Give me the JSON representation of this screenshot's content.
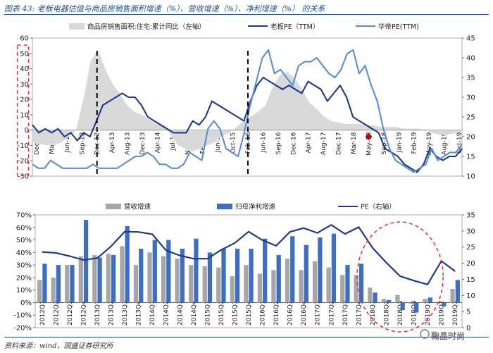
{
  "header": {
    "title": "图表 43: 老板电器估值与商品房销售面积增速（%）、营收增速（%）、净利增速（%） 的关系"
  },
  "footer": {
    "source": "资料来源：wind，国盛证券研究所",
    "watermark": "鞠晶时尚"
  },
  "colors": {
    "area": "#d9d9d9",
    "boss_pe": "#1f3a8a",
    "huadi_pe": "#5b8dd6",
    "revenue_bar": "#a6a6a6",
    "profit_bar": "#3c6fc4",
    "pe_line": "#1f3a8a",
    "highlight_marker": "#c00000",
    "box": "#e03030"
  },
  "chart_data": [
    {
      "type": "line",
      "title": "",
      "legend": [
        "商品房销售面积:住宅:累计同比（左轴）",
        "老板PE（TTM）",
        "华帝PE(TTM)"
      ],
      "legend_position": "top",
      "left_axis": {
        "ylim": [
          -30,
          60
        ],
        "ticks": [
          -30,
          -20,
          -10,
          0,
          10,
          20,
          30,
          40,
          50,
          60
        ]
      },
      "right_axis": {
        "ylim": [
          10,
          45
        ],
        "ticks": [
          10,
          15,
          20,
          25,
          30,
          35,
          40,
          45
        ]
      },
      "x_labels": [
        "Dec-11",
        "Mar-12",
        "Jun-12",
        "Sep-12",
        "Dec-12",
        "Apr-13",
        "Aug-13",
        "Dec-13",
        "Apr-14",
        "Jul-14",
        "Nov-14",
        "Feb-15",
        "Jun-15",
        "Oct-15",
        "Feb-16",
        "Jun-16",
        "Sep-16",
        "Dec-16",
        "Apr-17",
        "Aug-17",
        "Dec-17",
        "Mar-18",
        "May-18",
        "Sep-18",
        "Jan-19",
        "Feb-19",
        "May-19",
        "Aug-19",
        "Oct-19"
      ],
      "series": [
        {
          "name": "商品房销售面积:住宅:累计同比（左轴）",
          "axis": "left",
          "kind": "area",
          "values": [
            -8,
            -9,
            -10,
            -10,
            -8,
            -4,
            0,
            20,
            45,
            52,
            40,
            30,
            24,
            16,
            12,
            10,
            7,
            4,
            3,
            -3,
            -10,
            -12,
            -14,
            -12,
            -10,
            -8,
            -4,
            -2,
            2,
            6,
            9,
            12,
            16,
            28,
            36,
            38,
            34,
            27,
            18,
            14,
            9,
            6,
            5,
            4,
            4,
            4,
            3,
            3,
            2,
            2,
            2,
            1,
            1,
            1,
            0,
            -2,
            -3,
            -3,
            -2,
            -1
          ]
        },
        {
          "name": "老板PE（TTM）",
          "axis": "right",
          "kind": "line",
          "values": [
            23,
            21,
            22,
            21,
            22,
            20,
            21,
            19,
            21,
            20,
            24,
            28,
            29,
            30,
            31,
            30,
            30,
            28,
            25,
            24,
            23,
            22,
            21,
            21,
            21,
            24,
            23,
            25,
            29,
            28,
            27,
            26,
            25,
            24,
            29,
            33,
            35,
            34,
            33,
            32,
            33,
            32,
            31,
            34,
            33,
            32,
            29,
            31,
            33,
            30,
            25,
            24,
            23,
            22,
            21,
            17,
            16,
            15,
            13,
            12,
            11,
            13,
            17,
            15,
            14,
            15,
            15,
            17
          ]
        },
        {
          "name": "华帝PE(TTM)",
          "axis": "right",
          "kind": "line",
          "values": [
            13,
            12,
            12,
            14,
            13,
            12,
            12,
            12,
            12,
            12,
            13,
            12,
            12,
            12,
            12,
            13,
            14,
            15,
            15,
            16,
            15,
            13,
            13,
            12,
            12,
            13,
            16,
            15,
            14,
            22,
            24,
            22,
            17,
            16,
            15,
            21,
            28,
            34,
            40,
            42,
            36,
            37,
            35,
            33,
            38,
            39,
            39,
            40,
            38,
            36,
            35,
            37,
            41,
            42,
            36,
            38,
            33,
            29,
            22,
            17,
            14,
            13,
            12,
            11,
            12,
            13,
            17,
            14,
            15,
            16,
            16,
            18
          ]
        }
      ],
      "annotations": [
        {
          "type": "vertical-dashed",
          "at": "Dec-12",
          "color": "black"
        },
        {
          "type": "vertical-dashed",
          "at": "Feb-16",
          "color": "black"
        },
        {
          "type": "dashed-box",
          "from": "Nov-13",
          "to": "Apr-15",
          "color": "red"
        },
        {
          "type": "marker",
          "at": "May-18",
          "series": "老板PE（TTM）",
          "value": 20,
          "color": "red"
        }
      ]
    },
    {
      "type": "bar",
      "legend": [
        "营收增速",
        "归母净利增速",
        "PE（右轴）"
      ],
      "legend_position": "top",
      "left_axis": {
        "ylim": [
          -20,
          70
        ],
        "ticks": [
          "-20%",
          "-10%",
          "0%",
          "10%",
          "20%",
          "30%",
          "40%",
          "50%",
          "60%",
          "70%"
        ]
      },
      "right_axis": {
        "ylim": [
          0,
          35
        ],
        "ticks": [
          0,
          5,
          10,
          15,
          20,
          25,
          30,
          35
        ]
      },
      "categories": [
        "2012Q1",
        "2012Q2",
        "2012Q3",
        "2012Q4",
        "2013Q1",
        "2013Q2",
        "2013Q3",
        "2013Q4",
        "2014Q1",
        "2014Q2",
        "2014Q3",
        "2014Q4",
        "2015Q1",
        "2015Q2",
        "2015Q3",
        "2015Q4",
        "2016Q1",
        "2016Q2",
        "2016Q3",
        "2016Q4",
        "2017Q1",
        "2017Q2",
        "2017Q3",
        "2017Q4",
        "2018Q1",
        "2018Q2",
        "2018Q3",
        "2018Q4",
        "2019Q1",
        "2019Q2",
        "2019Q3"
      ],
      "series": [
        {
          "name": "营收增速",
          "axis": "left",
          "kind": "bar",
          "values": [
            18,
            20,
            30,
            37,
            38,
            39,
            45,
            30,
            40,
            37,
            35,
            30,
            29,
            28,
            21,
            30,
            23,
            26,
            35,
            26,
            33,
            28,
            22,
            22,
            12,
            3,
            6,
            -1,
            3,
            0,
            11
          ]
        },
        {
          "name": "归母净利增速",
          "axis": "left",
          "kind": "bar",
          "values": [
            31,
            30,
            30,
            66,
            36,
            38,
            61,
            43,
            50,
            50,
            43,
            51,
            40,
            43,
            43,
            43,
            51,
            38,
            53,
            46,
            52,
            55,
            30,
            31,
            8,
            2,
            -6,
            -8,
            4,
            -3,
            18
          ]
        },
        {
          "name": "PE（右轴）",
          "axis": "right",
          "kind": "line",
          "values": [
            23.5,
            23.2,
            22.2,
            21.0,
            21.6,
            25.2,
            29.8,
            29.7,
            29.0,
            24.0,
            22.4,
            21.4,
            21.4,
            24.1,
            26.3,
            29.8,
            27.2,
            25.4,
            29.7,
            30.9,
            29.4,
            31.9,
            29.1,
            31.2,
            24.8,
            20.2,
            16.0,
            14.6,
            13.4,
            20.7,
            17.5
          ]
        }
      ],
      "annotations": [
        {
          "type": "dashed-ellipse",
          "around": [
            "2018Q1",
            "2019Q1"
          ],
          "color": "red"
        }
      ]
    }
  ]
}
